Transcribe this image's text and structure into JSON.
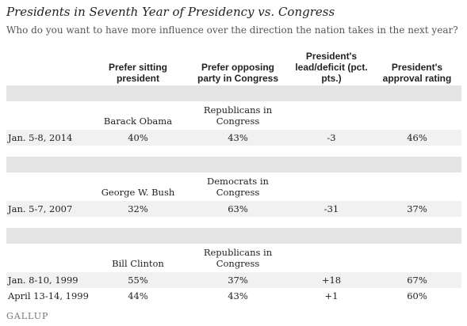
{
  "title": "Presidents in Seventh Year of Presidency vs. Congress",
  "subtitle": "Who do you want to have more influence over the direction the nation takes in the next year?",
  "footer": "GALLUP",
  "chart_data": {
    "type": "table",
    "columns": [
      "",
      "Prefer sitting president",
      "Prefer opposing party in Congress",
      "President's lead/deficit (pct. pts.)",
      "President's approval rating"
    ],
    "groups": [
      {
        "president": "Barack Obama",
        "congress": "Republicans in Congress",
        "rows": [
          {
            "date": "Jan. 5-8, 2014",
            "sitting": "40%",
            "opposing": "43%",
            "lead": "-3",
            "approval": "46%"
          }
        ]
      },
      {
        "president": "George W. Bush",
        "congress": "Democrats in Congress",
        "rows": [
          {
            "date": "Jan. 5-7, 2007",
            "sitting": "32%",
            "opposing": "63%",
            "lead": "-31",
            "approval": "37%"
          }
        ]
      },
      {
        "president": "Bill Clinton",
        "congress": "Republicans in Congress",
        "rows": [
          {
            "date": "Jan. 8-10, 1999",
            "sitting": "55%",
            "opposing": "37%",
            "lead": "+18",
            "approval": "67%"
          },
          {
            "date": "April 13-14, 1999",
            "sitting": "44%",
            "opposing": "43%",
            "lead": "+1",
            "approval": "60%"
          }
        ]
      }
    ]
  }
}
